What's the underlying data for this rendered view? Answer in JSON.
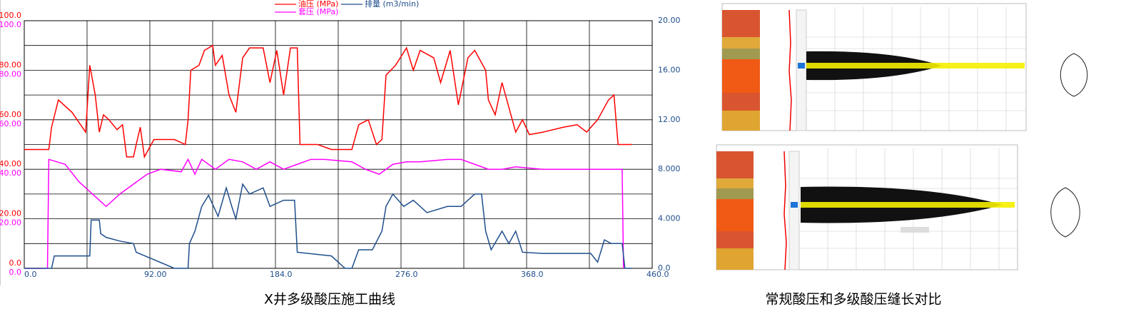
{
  "chart_data": {
    "type": "line",
    "caption": "X井多级酸压施工曲线",
    "xlim": [
      0,
      460
    ],
    "xticks": [
      {
        "value": 0,
        "label": "0.0"
      },
      {
        "value": 92,
        "label": "92.00"
      },
      {
        "value": 184,
        "label": "184.0"
      },
      {
        "value": 276,
        "label": "276.0"
      },
      {
        "value": 368,
        "label": "368.0"
      },
      {
        "value": 460,
        "label": "460.0"
      }
    ],
    "xgrid": [
      0,
      46,
      92,
      138,
      184,
      230,
      276,
      322,
      368,
      414,
      460
    ],
    "ylim": [
      0,
      100
    ],
    "yticks": [
      {
        "value": 0,
        "label": "0.0"
      },
      {
        "value": 20,
        "label": "20.00"
      },
      {
        "value": 40,
        "label": "40.00"
      },
      {
        "value": 60,
        "label": "60.00"
      },
      {
        "value": 80,
        "label": "80.00"
      },
      {
        "value": 100,
        "label": "100.0"
      }
    ],
    "y3lim": [
      0,
      100
    ],
    "y3ticks": [
      {
        "value": 0,
        "label": "0.0"
      },
      {
        "value": 20,
        "label": "20.00"
      },
      {
        "value": 40,
        "label": "40.00"
      },
      {
        "value": 60,
        "label": "60.00"
      },
      {
        "value": 80,
        "label": "80.00"
      },
      {
        "value": 100,
        "label": "100.0"
      }
    ],
    "y2lim": [
      0,
      20
    ],
    "y2ticks": [
      {
        "value": 0,
        "label": "0.0"
      },
      {
        "value": 4,
        "label": "4.000"
      },
      {
        "value": 8,
        "label": "8.000"
      },
      {
        "value": 12,
        "label": "12.00"
      },
      {
        "value": 16,
        "label": "16.00"
      },
      {
        "value": 20,
        "label": "20.00"
      }
    ],
    "ygrid": [
      0,
      2,
      4,
      6,
      8,
      10,
      12,
      14,
      16,
      18,
      20
    ],
    "grid": true,
    "series": [
      {
        "name": "油压 (MPa)",
        "color": "#ff0000",
        "axis": "y",
        "x": [
          0,
          10,
          18,
          20,
          25,
          35,
          45,
          48,
          52,
          55,
          58,
          62,
          68,
          72,
          75,
          80,
          82,
          85,
          88,
          95,
          110,
          118,
          120,
          122,
          128,
          132,
          138,
          140,
          145,
          150,
          155,
          160,
          165,
          175,
          180,
          185,
          190,
          195,
          200,
          202,
          215,
          225,
          240,
          245,
          252,
          258,
          262,
          265,
          272,
          280,
          285,
          290,
          300,
          305,
          312,
          318,
          325,
          330,
          338,
          340,
          345,
          350,
          355,
          360,
          365,
          370,
          380,
          395,
          405,
          412,
          420,
          428,
          432,
          435,
          445
        ],
        "values": [
          48,
          48,
          48,
          57,
          68,
          63,
          55,
          82,
          70,
          55,
          62,
          60,
          56,
          58,
          45,
          45,
          50,
          57,
          45,
          52,
          52,
          50,
          60,
          80,
          82,
          88,
          90,
          82,
          86,
          70,
          63,
          85,
          89,
          89,
          75,
          88,
          70,
          89,
          89,
          50,
          50,
          48,
          48,
          58,
          60,
          50,
          52,
          78,
          82,
          89,
          80,
          88,
          85,
          75,
          88,
          66,
          85,
          88,
          80,
          68,
          62,
          75,
          65,
          55,
          60,
          54,
          55,
          57,
          58,
          55,
          60,
          68,
          70,
          50,
          50
        ]
      },
      {
        "name": "套压 (MPa)",
        "color": "#ff00ff",
        "axis": "y3",
        "x": [
          0,
          17,
          18,
          30,
          40,
          50,
          60,
          70,
          80,
          90,
          100,
          115,
          120,
          125,
          130,
          140,
          150,
          160,
          170,
          180,
          190,
          200,
          210,
          220,
          240,
          250,
          260,
          270,
          280,
          290,
          310,
          320,
          330,
          340,
          350,
          360,
          380,
          400,
          420,
          438,
          439
        ],
        "values": [
          0,
          0,
          44,
          42,
          35,
          30,
          25,
          30,
          34,
          38,
          40,
          39,
          44,
          38,
          44,
          40,
          44,
          43,
          40,
          43,
          40,
          42,
          44,
          44,
          43,
          40,
          38,
          42,
          43,
          43,
          44,
          44,
          42,
          40,
          40,
          41,
          40,
          40,
          40,
          40,
          0
        ]
      },
      {
        "name": "排量 (m3/min)",
        "color": "#1f4e8c",
        "axis": "y2",
        "x": [
          0,
          20,
          22,
          40,
          48,
          49,
          55,
          56,
          60,
          70,
          80,
          82,
          110,
          120,
          121,
          125,
          130,
          135,
          142,
          148,
          152,
          155,
          160,
          165,
          175,
          180,
          190,
          198,
          200,
          225,
          235,
          240,
          245,
          255,
          262,
          265,
          270,
          278,
          285,
          295,
          310,
          320,
          330,
          335,
          338,
          342,
          350,
          355,
          360,
          365,
          380,
          400,
          415,
          420,
          425,
          430,
          435,
          438,
          440,
          445
        ],
        "values": [
          0,
          0,
          1,
          1,
          1,
          3.9,
          3.9,
          2.8,
          2.5,
          2.2,
          2,
          1.3,
          0,
          0,
          2,
          3,
          5,
          5.9,
          4.2,
          6.5,
          5,
          4,
          6.8,
          6,
          6.5,
          5,
          5.5,
          5.5,
          1.3,
          1,
          0,
          0,
          1.5,
          1.5,
          3,
          5,
          6,
          5,
          5.5,
          4.5,
          5,
          5,
          6,
          6,
          3,
          1.5,
          3,
          2,
          3,
          1.3,
          1.2,
          1.2,
          1.2,
          0.5,
          2.3,
          2,
          2,
          2,
          0,
          0
        ]
      }
    ]
  },
  "right_panel": {
    "caption": "常规酸压和多级酸压缝长对比"
  }
}
